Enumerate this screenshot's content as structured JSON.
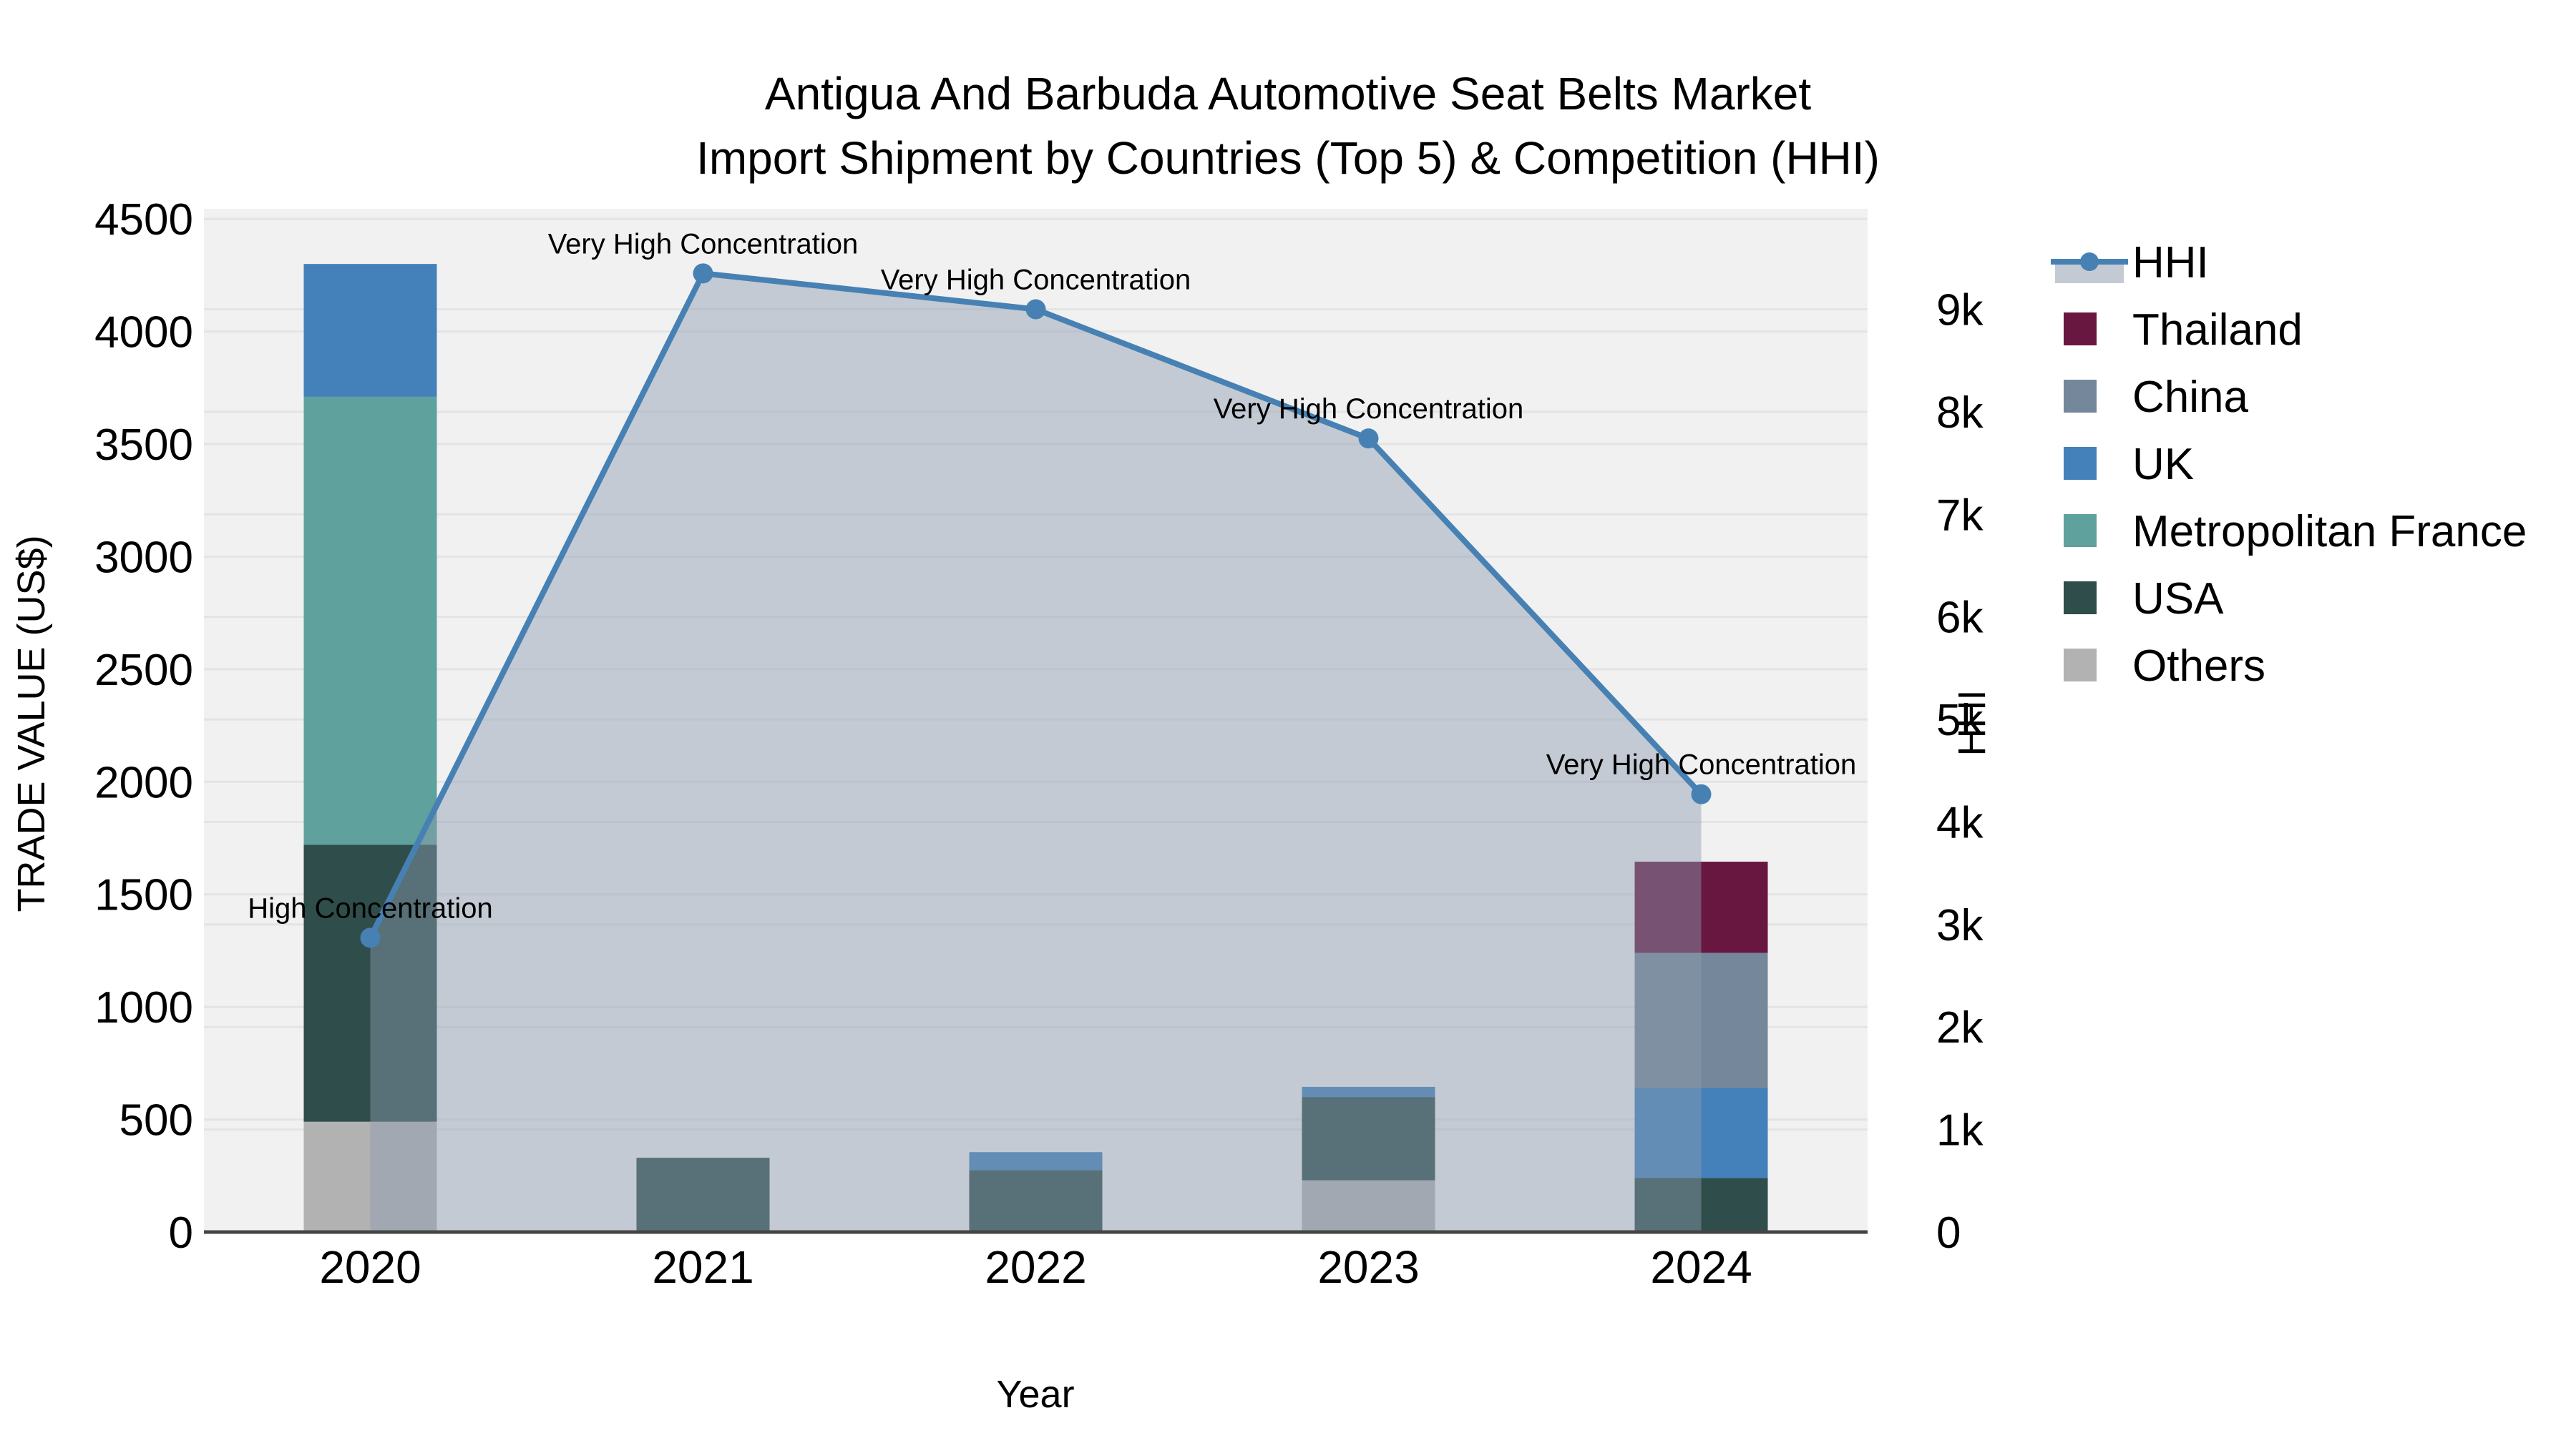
{
  "title": {
    "line1": "Antigua And Barbuda Automotive Seat Belts Market",
    "line2": "Import Shipment by Countries (Top 5) & Competition (HHI)"
  },
  "axis_titles": {
    "left": "TRADE VALUE (US$)",
    "right": "HHI",
    "x": "Year"
  },
  "chart_data": {
    "type": "combo-stacked-bar-line",
    "categories": [
      "2020",
      "2021",
      "2022",
      "2023",
      "2024"
    ],
    "bar_axis": {
      "label": "TRADE VALUE (US$)",
      "ticks": [
        0,
        500,
        1000,
        1500,
        2000,
        2500,
        3000,
        3500,
        4000,
        4500
      ],
      "max": 4545
    },
    "line_axis": {
      "label": "HHI",
      "ticks": [
        {
          "v": 0,
          "label": "0"
        },
        {
          "v": 1000,
          "label": "1k"
        },
        {
          "v": 2000,
          "label": "2k"
        },
        {
          "v": 3000,
          "label": "3k"
        },
        {
          "v": 4000,
          "label": "4k"
        },
        {
          "v": 5000,
          "label": "5k"
        },
        {
          "v": 6000,
          "label": "6k"
        },
        {
          "v": 7000,
          "label": "7k"
        },
        {
          "v": 8000,
          "label": "8k"
        },
        {
          "v": 9000,
          "label": "9k"
        }
      ],
      "max": 9980
    },
    "series": [
      {
        "name": "Others",
        "color": "#b2b2b2",
        "values": [
          490,
          0,
          0,
          230,
          0
        ]
      },
      {
        "name": "USA",
        "color": "#2f4d4a",
        "values": [
          1230,
          330,
          275,
          370,
          240
        ]
      },
      {
        "name": "Metropolitan France",
        "color": "#5fa19c",
        "values": [
          1990,
          0,
          0,
          0,
          0
        ]
      },
      {
        "name": "UK",
        "color": "#4481ba",
        "values": [
          590,
          0,
          80,
          45,
          400
        ]
      },
      {
        "name": "China",
        "color": "#75879a",
        "values": [
          0,
          0,
          0,
          0,
          600
        ]
      },
      {
        "name": "Thailand",
        "color": "#681740",
        "values": [
          0,
          0,
          0,
          0,
          405
        ]
      }
    ],
    "line": {
      "name": "HHI",
      "color": "#4781b4",
      "fill_color": "rgba(140,155,175,0.45)",
      "values": [
        2870,
        9350,
        9000,
        7740,
        4270
      ],
      "annotations": [
        "High Concentration",
        "Very High Concentration",
        "Very High Concentration",
        "Very High Concentration",
        "Very High Concentration"
      ]
    },
    "layout_hints": {
      "grid": "both-axes-horizontal",
      "legend_position": "right",
      "plot_bg": "#f1f1f1",
      "grid_color": "#e4e4e4",
      "axis_line_color": "#444444"
    }
  },
  "legend": {
    "items": [
      {
        "label": "HHI",
        "glyph": "line",
        "color": "#4781b4",
        "band": "#c4cad3"
      },
      {
        "label": "Thailand",
        "glyph": "square",
        "color": "#681740"
      },
      {
        "label": "China",
        "glyph": "square",
        "color": "#75879a"
      },
      {
        "label": "UK",
        "glyph": "square",
        "color": "#4481ba"
      },
      {
        "label": "Metropolitan France",
        "glyph": "square",
        "color": "#5fa19c"
      },
      {
        "label": "USA",
        "glyph": "square",
        "color": "#2f4d4a"
      },
      {
        "label": "Others",
        "glyph": "square",
        "color": "#b2b2b2"
      }
    ]
  },
  "colors": {
    "plot_bg": "#f1f1f1",
    "grid": "#e4e4e4",
    "axis_line": "#444444",
    "text": "#000000"
  }
}
